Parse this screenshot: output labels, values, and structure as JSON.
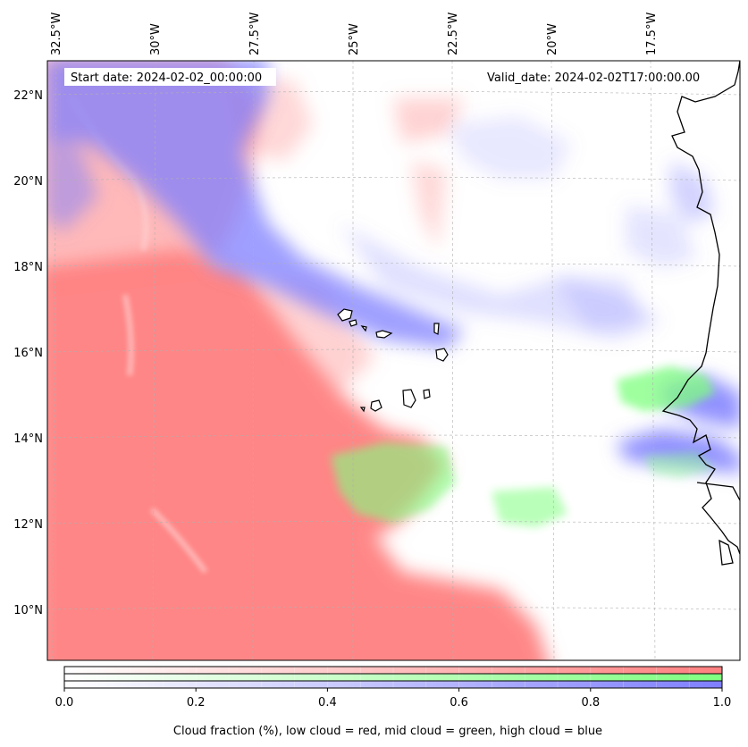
{
  "map": {
    "start_date": "Start date: 2024-02-02_00:00:00",
    "valid_date": "Valid_date: 2024-02-02T17:00:00.00",
    "longitude_labels": [
      "32.5°W",
      "30°W",
      "27.5°W",
      "25°W",
      "22.5°W",
      "20°W",
      "17.5°W"
    ],
    "latitude_labels": [
      "22°N",
      "20°N",
      "18°N",
      "16°N",
      "14°N",
      "12°N",
      "10°N"
    ],
    "layers": [
      {
        "name": "low cloud",
        "color": "#ff7f7f"
      },
      {
        "name": "mid cloud",
        "color": "#7fff7f"
      },
      {
        "name": "high cloud",
        "color": "#7f7fff"
      }
    ]
  },
  "colorbar": {
    "ticks": [
      "0.0",
      "0.2",
      "0.4",
      "0.6",
      "0.8",
      "1.0"
    ],
    "label": "Cloud fraction (%), low cloud = red, mid cloud = green, high cloud = blue"
  }
}
